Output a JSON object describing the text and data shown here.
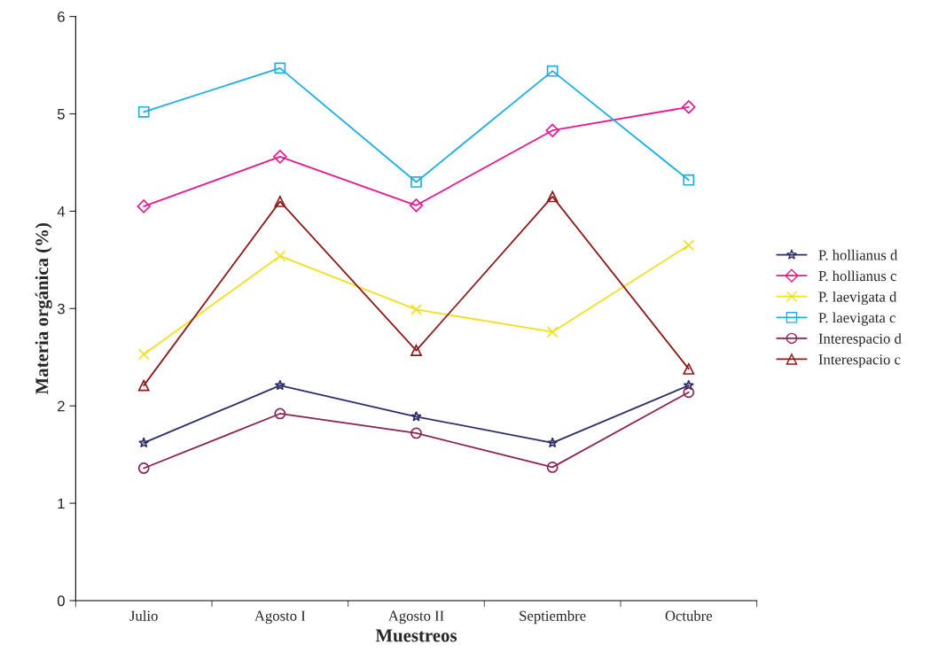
{
  "chart_data": {
    "type": "line",
    "xlabel": "Muestreos",
    "ylabel": "Materia orgánica (%)",
    "categories": [
      "Julio",
      "Agosto I",
      "Agosto II",
      "Septiembre",
      "Octubre"
    ],
    "ylim": [
      0,
      6
    ],
    "yticks": [
      0,
      1,
      2,
      3,
      4,
      5,
      6
    ],
    "grid": false,
    "legend": "right",
    "series": [
      {
        "name": "P. hollianus d",
        "color": "#2e2e6b",
        "marker": "star",
        "values": [
          1.62,
          2.21,
          1.89,
          1.62,
          2.21
        ]
      },
      {
        "name": "P. hollianus c",
        "color": "#e6198c",
        "marker": "diamond",
        "values": [
          4.05,
          4.56,
          4.06,
          4.83,
          5.07
        ]
      },
      {
        "name": "P. laevigata d",
        "color": "#f0e01e",
        "marker": "cross",
        "values": [
          2.53,
          3.54,
          2.99,
          2.76,
          3.65
        ]
      },
      {
        "name": "P. laevigata c",
        "color": "#1eaee6",
        "marker": "square",
        "values": [
          5.02,
          5.47,
          4.3,
          5.44,
          4.32
        ]
      },
      {
        "name": "Interespacio d",
        "color": "#8b2252",
        "marker": "circle",
        "values": [
          1.36,
          1.92,
          1.72,
          1.37,
          2.14
        ]
      },
      {
        "name": "Interespacio c",
        "color": "#8b1a1a",
        "marker": "triangle",
        "values": [
          2.21,
          4.1,
          2.57,
          4.15,
          2.38
        ]
      }
    ]
  }
}
